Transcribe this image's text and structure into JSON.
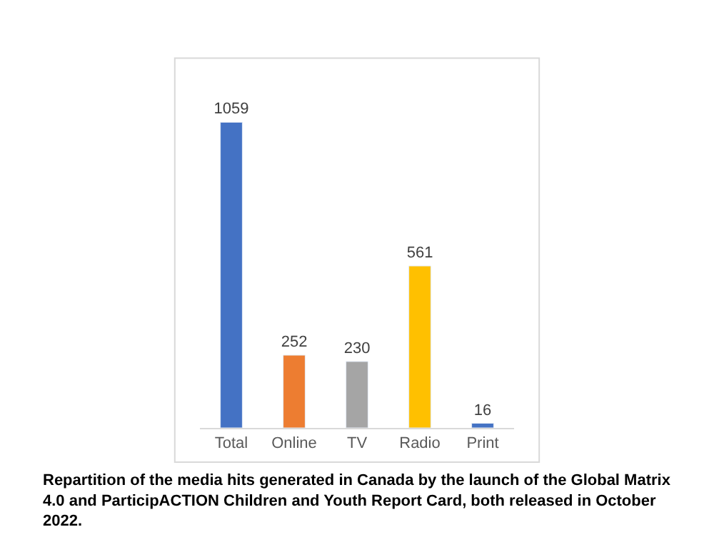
{
  "chart_data": {
    "type": "bar",
    "categories": [
      "Total",
      "Online",
      "TV",
      "Radio",
      "Print"
    ],
    "values": [
      1059,
      252,
      230,
      561,
      16
    ],
    "colors": [
      "#4472c4",
      "#ed7d31",
      "#a5a5a5",
      "#ffc000",
      "#4472c4"
    ],
    "data_labels": true,
    "legend": false,
    "tick_labels": "x",
    "annotations": [
      "Repartition of the media hits generated in Canada by the launch of the Global Matrix 4.0 and ParticipACTION Children and Youth Report Card, both released in October 2022."
    ]
  }
}
